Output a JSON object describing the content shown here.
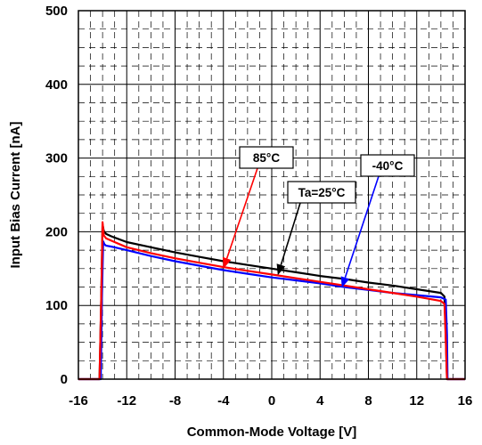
{
  "chart_data": {
    "type": "line",
    "title": "",
    "xlabel": "Common-Mode Voltage [V]",
    "ylabel": "Input Bias Current [nA]",
    "xlim": [
      -16,
      16
    ],
    "ylim": [
      0,
      500
    ],
    "xticks": [
      -16,
      -12,
      -8,
      -4,
      0,
      4,
      8,
      12,
      16
    ],
    "yticks": [
      0,
      100,
      200,
      300,
      400,
      500
    ],
    "grid": {
      "major": true,
      "minor": true,
      "minor_dashed": true
    },
    "series": [
      {
        "name": "Ta=25°C",
        "color": "#000000",
        "x": [
          -16,
          -14.25,
          -14.1,
          -14.0,
          -13.9,
          -13.7,
          -13.3,
          -12,
          -10,
          -8,
          -6,
          -4,
          -2,
          0,
          2,
          4,
          6,
          8,
          10,
          12,
          14.0,
          14.3,
          14.4,
          14.5,
          14.7,
          16
        ],
        "y": [
          0,
          0,
          120,
          210,
          201,
          197,
          194,
          186,
          179,
          172,
          166,
          160,
          155,
          150,
          145,
          140,
          136,
          131,
          127,
          122,
          117,
          112,
          60,
          0,
          0,
          0
        ]
      },
      {
        "name": "85°C",
        "color": "#ff0000",
        "x": [
          -16,
          -14.25,
          -14.1,
          -14.0,
          -13.9,
          -13.7,
          -13.3,
          -12,
          -10,
          -8,
          -6,
          -4,
          -2,
          0,
          2,
          4,
          6,
          8,
          10,
          12,
          14.0,
          14.3,
          14.4,
          14.5,
          14.7,
          16
        ],
        "y": [
          0,
          0,
          120,
          213,
          195,
          191,
          188,
          179,
          171,
          164,
          158,
          152,
          147,
          142,
          137,
          132,
          127,
          122,
          117,
          112,
          106,
          102,
          55,
          0,
          0,
          0
        ]
      },
      {
        "name": "-40°C",
        "color": "#0000ff",
        "x": [
          -16,
          -14.15,
          -14.05,
          -13.95,
          -13.85,
          -13.7,
          -13.3,
          -12,
          -10,
          -8,
          -6,
          -4,
          -2,
          0,
          2,
          4,
          6,
          8,
          10,
          12,
          14.0,
          14.4,
          14.5,
          14.55,
          14.7,
          16
        ],
        "y": [
          0,
          0,
          110,
          187,
          183,
          181,
          180,
          175,
          167,
          160,
          154,
          148,
          143,
          138,
          134,
          130,
          125,
          121,
          117,
          114,
          111,
          108,
          60,
          0,
          0,
          0
        ]
      }
    ],
    "annotations": [
      {
        "text": "85°C",
        "target": [
          -4,
          150
        ]
      },
      {
        "text": "Ta=25°C",
        "target": [
          0.5,
          141
        ]
      },
      {
        "text": "-40°C",
        "target": [
          5.8,
          124
        ]
      }
    ]
  }
}
